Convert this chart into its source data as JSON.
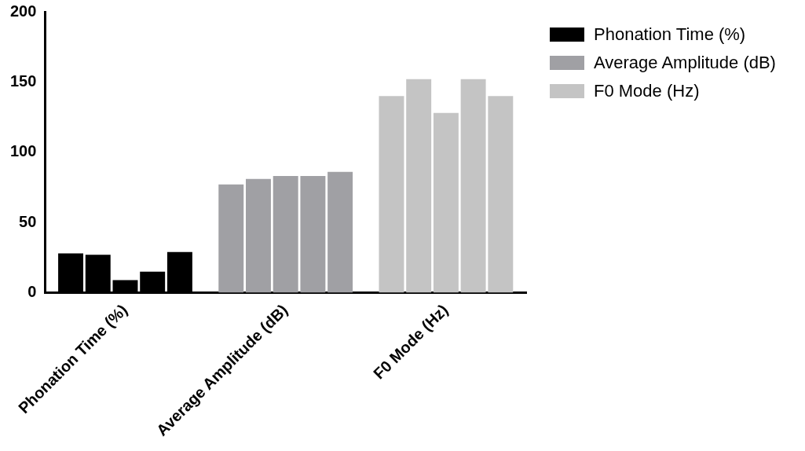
{
  "chart_data": {
    "type": "bar",
    "categories": [
      "Phonation Time (%)",
      "Average Amplitude (dB)",
      "F0 Mode (Hz)"
    ],
    "series": [
      {
        "colors": [
          "#000000",
          "#a0a0a4",
          "#c4c4c4"
        ],
        "values": [
          28,
          77,
          140
        ]
      },
      {
        "colors": [
          "#000000",
          "#a0a0a4",
          "#c4c4c4"
        ],
        "values": [
          27,
          81,
          152
        ]
      },
      {
        "colors": [
          "#000000",
          "#a0a0a4",
          "#c4c4c4"
        ],
        "values": [
          9,
          83,
          128
        ]
      },
      {
        "colors": [
          "#000000",
          "#a0a0a4",
          "#c4c4c4"
        ],
        "values": [
          15,
          83,
          152
        ]
      },
      {
        "colors": [
          "#000000",
          "#a0a0a4",
          "#c4c4c4"
        ],
        "values": [
          29,
          86,
          140
        ]
      }
    ],
    "ylim": [
      0,
      200
    ],
    "yticks": [
      0,
      50,
      100,
      150,
      200
    ],
    "grid": false
  }
}
